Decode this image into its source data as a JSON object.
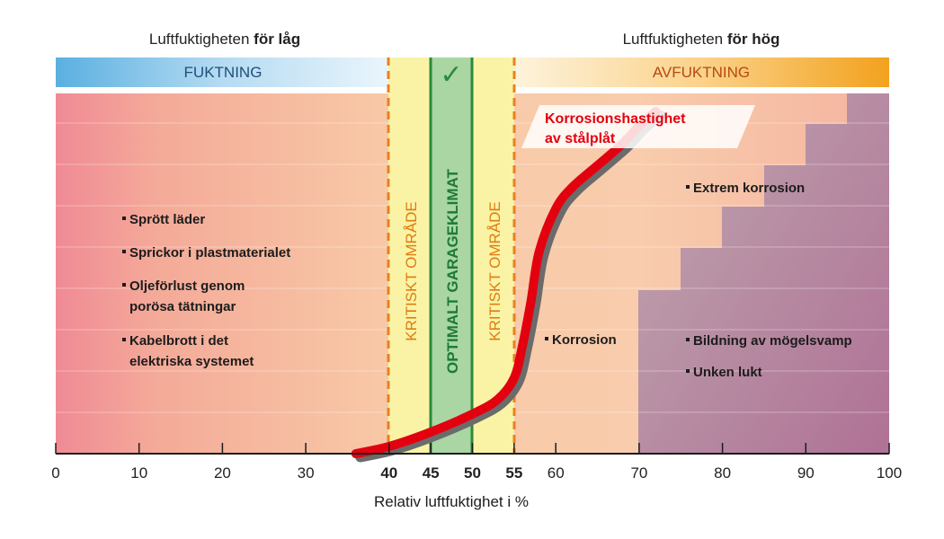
{
  "header": {
    "left_prefix": "Luftfuktigheten ",
    "left_bold": "för låg",
    "right_prefix": "Luftfuktigheten ",
    "right_bold": "för hög"
  },
  "bands": {
    "left": "FUKTNING",
    "right": "AVFUKTNING",
    "check_symbol": "✓"
  },
  "zones": {
    "critical_left": "KRITISKT OMRÅDE",
    "optimal": "OPTIMALT GARAGEKLIMAT",
    "critical_right": "KRITISKT OMRÅDE"
  },
  "annotations": {
    "left_items": [
      "Sprött läder",
      "Sprickor i plastmaterialet",
      "Oljeförlust genom",
      "porösa tätningar",
      "Kabelbrott i det",
      "elektriska systemet"
    ],
    "corrosion": "Korrosion",
    "extreme": "Extrem korrosion",
    "mould": "Bildning av mögelsvamp",
    "odour": "Unken lukt"
  },
  "colors": {
    "curve": "#e3000f",
    "critical_zone": "#faf3a5",
    "optimal_zone": "#a9d6a3",
    "dash_line": "#e8821e",
    "optimal_line": "#2a8a3d",
    "band_left_text": "#1f4e7a",
    "band_right_text": "#b54a12",
    "critical_text": "#e07c10",
    "optimal_text": "#1e7a35",
    "highlight_tick_orange": "#e8821e",
    "highlight_tick_green": "#2a8a3d"
  },
  "chart_data": {
    "type": "line",
    "title": "Korrosionshastighet av stålplåt",
    "title_lines": [
      "Korrosionshastighet",
      "av stålplåt"
    ],
    "xlabel": "Relativ luftfuktighet i %",
    "ylabel": "",
    "xlim": [
      0,
      100
    ],
    "x_ticks": [
      0,
      10,
      20,
      30,
      40,
      45,
      50,
      55,
      60,
      70,
      80,
      90,
      100
    ],
    "highlighted_ticks": [
      40,
      45,
      50,
      55
    ],
    "critical_ranges": [
      [
        40,
        45
      ],
      [
        50,
        55
      ]
    ],
    "optimal_range": [
      45,
      50
    ],
    "series": [
      {
        "name": "Korrosionshastighet av stålplåt",
        "x": [
          36,
          40,
          45,
          50,
          53,
          55,
          56,
          57,
          58,
          60,
          62,
          65,
          68,
          70,
          72
        ],
        "y": [
          0.0,
          0.02,
          0.06,
          0.11,
          0.15,
          0.21,
          0.3,
          0.42,
          0.56,
          0.68,
          0.74,
          0.8,
          0.86,
          0.91,
          0.95
        ]
      }
    ],
    "grid": true
  }
}
